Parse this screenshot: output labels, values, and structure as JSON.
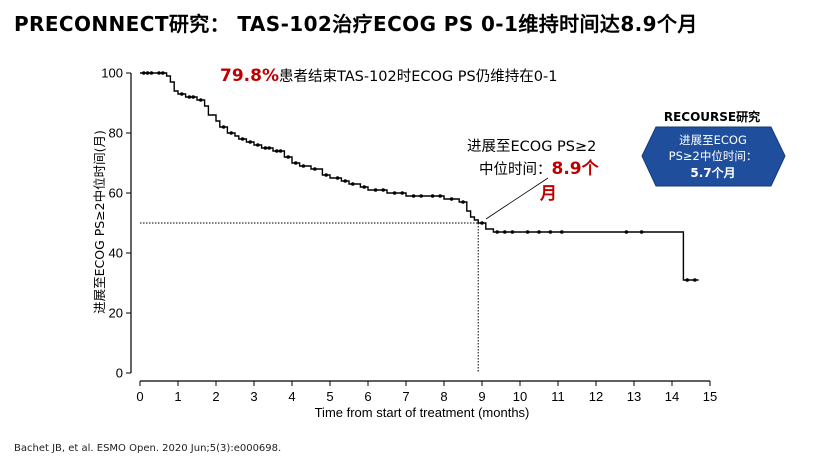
{
  "title": "PRECONNECT研究： TAS-102治疗ECOG PS 0-1维持时间达8.9个月",
  "citation": "Bachet JB, et al. ESMO Open. 2020 Jun;5(3):e000698.",
  "colors": {
    "curve": "#000000",
    "highlight": "#c00000",
    "badge_fill": "#1f4e9c",
    "badge_stroke": "#163a78"
  },
  "annotations": {
    "top_pct": "79.8%",
    "top_text": "患者结束TAS-102时ECOG PS仍维持在0-1",
    "median_line1": "进展至ECOG PS≥2",
    "median_line2_prefix": "中位时间：",
    "median_value": "8.9个",
    "median_unit": "月"
  },
  "badge": {
    "title": "RECOURSE研究",
    "line1": "进展至ECOG",
    "line2": "PS≥2中位时间：",
    "line3": "5.7个月"
  },
  "chart_data": {
    "type": "line",
    "xlabel": "Time from start of treatment (months)",
    "ylabel": "进展至ECOG PS≥2中位时间(月)",
    "xlim": [
      0,
      15
    ],
    "ylim": [
      0,
      100
    ],
    "xticks": [
      "0",
      "1",
      "2",
      "3",
      "4",
      "5",
      "6",
      "7",
      "8",
      "9",
      "10",
      "11",
      "12",
      "13",
      "14",
      "15"
    ],
    "yticks": [
      "0",
      "20",
      "40",
      "60",
      "80",
      "100"
    ],
    "median": {
      "x": 8.9,
      "y": 50
    },
    "series": [
      {
        "step_x": [
          0,
          0.7,
          0.8,
          0.9,
          1.0,
          1.2,
          1.5,
          1.7,
          1.8,
          2.0,
          2.1,
          2.3,
          2.5,
          2.6,
          2.8,
          3.0,
          3.2,
          3.5,
          3.8,
          4.0,
          4.2,
          4.5,
          4.8,
          5.0,
          5.3,
          5.5,
          5.8,
          6.0,
          6.5,
          7.0,
          7.5,
          8.0,
          8.4,
          8.6,
          8.7,
          8.8,
          8.9,
          9.1,
          9.3,
          14.2,
          14.3,
          14.7
        ],
        "step_y": [
          100,
          99,
          97,
          94,
          93,
          92,
          91,
          89,
          86,
          84,
          82,
          80,
          79,
          78,
          77,
          76,
          75,
          74,
          72,
          70,
          69,
          68,
          66,
          65,
          64,
          63,
          62,
          61,
          60,
          59,
          59,
          58,
          57,
          54,
          52,
          51,
          50,
          48,
          47,
          47,
          31,
          31
        ],
        "censor_x": [
          0.1,
          0.2,
          0.3,
          0.5,
          0.6,
          1.1,
          1.3,
          1.4,
          1.6,
          2.2,
          2.4,
          2.7,
          2.9,
          3.1,
          3.3,
          3.4,
          3.6,
          3.7,
          3.9,
          4.1,
          4.3,
          4.6,
          4.9,
          5.2,
          5.4,
          5.6,
          5.9,
          6.2,
          6.4,
          6.7,
          6.9,
          7.2,
          7.4,
          7.7,
          7.9,
          8.2,
          8.5,
          9.0,
          9.4,
          9.6,
          9.8,
          10.2,
          10.5,
          10.8,
          11.1,
          12.8,
          13.2,
          14.4,
          14.6
        ]
      }
    ]
  }
}
